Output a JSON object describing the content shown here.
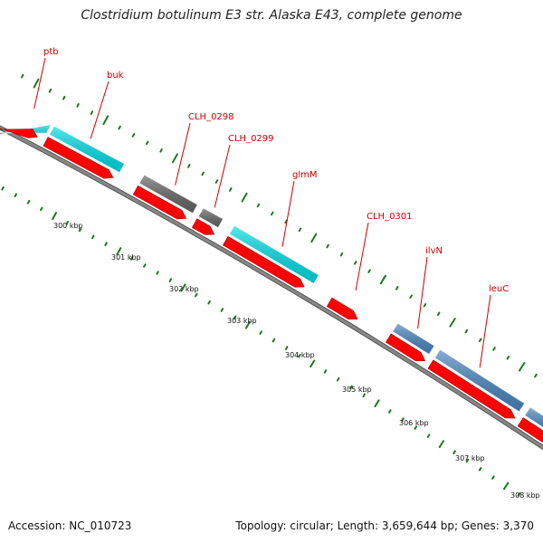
{
  "title": "Clostridium botulinum E3 str. Alaska E43, complete genome",
  "footer": {
    "accession": "Accession: NC_010723",
    "summary": "Topology: circular; Length: 3,659,644 bp; Genes: 3,370"
  },
  "colors": {
    "cds": "#ff0000",
    "cyan_feature": "#00e0e8",
    "gray_feature": "#666666",
    "blue_feature": "#4a86c0",
    "backbone": "#888888",
    "ticks": "#1a7a1a",
    "label": "#cc0000"
  },
  "genes": [
    {
      "name": "ptb"
    },
    {
      "name": "buk"
    },
    {
      "name": "CLH_0298"
    },
    {
      "name": "CLH_0299"
    },
    {
      "name": "glmM"
    },
    {
      "name": "CLH_0301"
    },
    {
      "name": "ilvN"
    },
    {
      "name": "leuC"
    }
  ],
  "scale_labels": [
    "300 kbp",
    "301 kbp",
    "302 kbp",
    "303 kbp",
    "304 kbp",
    "305 kbp",
    "306 kbp",
    "307 kbp",
    "308 kbp"
  ]
}
